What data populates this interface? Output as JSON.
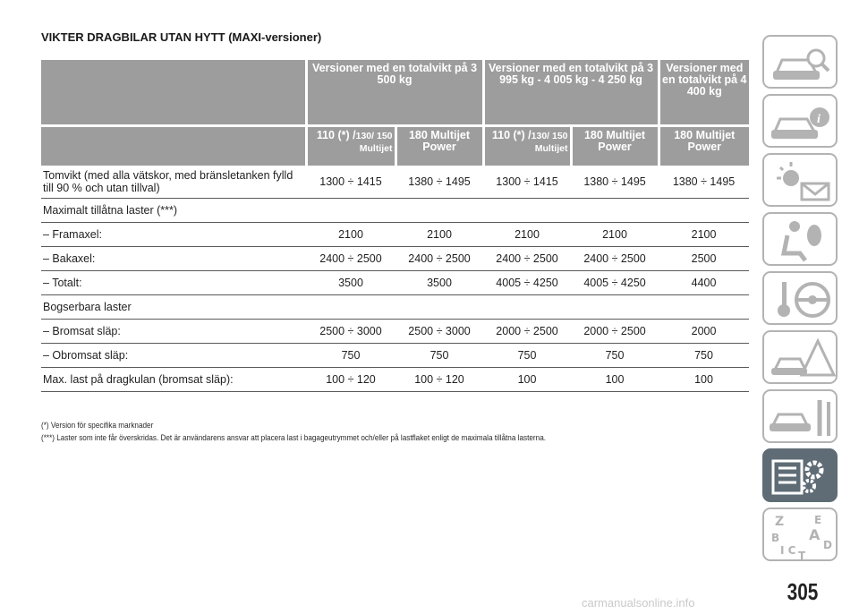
{
  "title": "VIKTER DRAGBILAR UTAN HYTT (MAXI-versioner)",
  "header": {
    "groups": [
      "Versioner med en totalvikt på 3 500 kg",
      "Versioner med en totalvikt på 3 995 kg - 4 005 kg - 4 250 kg",
      "Versioner med en totalvikt på 4 400 kg"
    ],
    "engines": [
      {
        "main": "110 (*) /",
        "small": "130/ 150 Multijet"
      },
      {
        "main": "180 Multijet Power",
        "small": ""
      },
      {
        "main": "110 (*) /",
        "small": "130/ 150 Multijet"
      },
      {
        "main": "180 Multijet Power",
        "small": ""
      },
      {
        "main": "180 Multijet Power",
        "small": ""
      }
    ]
  },
  "rows": [
    {
      "label": "Tomvikt (med alla vätskor, med bränsletanken fylld till 90 % och utan tillval)",
      "values": [
        "1300 ÷ 1415",
        "1380 ÷ 1495",
        "1300 ÷ 1415",
        "1380 ÷ 1495",
        "1380 ÷ 1495"
      ]
    },
    {
      "label": "Maximalt tillåtna laster (***)",
      "values": [
        "",
        "",
        "",
        "",
        ""
      ]
    },
    {
      "label": "– Framaxel:",
      "values": [
        "2100",
        "2100",
        "2100",
        "2100",
        "2100"
      ]
    },
    {
      "label": "– Bakaxel:",
      "values": [
        "2400 ÷ 2500",
        "2400 ÷ 2500",
        "2400 ÷ 2500",
        "2400 ÷ 2500",
        "2500"
      ]
    },
    {
      "label": "– Totalt:",
      "values": [
        "3500",
        "3500",
        "4005 ÷ 4250",
        "4005 ÷ 4250",
        "4400"
      ]
    },
    {
      "label": "Bogserbara laster",
      "values": [
        "",
        "",
        "",
        "",
        ""
      ]
    },
    {
      "label": "– Bromsat släp:",
      "values": [
        "2500 ÷ 3000",
        "2500 ÷ 3000",
        "2000 ÷ 2500",
        "2000 ÷ 2500",
        "2000"
      ]
    },
    {
      "label": "– Obromsat släp:",
      "values": [
        "750",
        "750",
        "750",
        "750",
        "750"
      ]
    },
    {
      "label": "Max. last på dragkulan (bromsat släp):",
      "values": [
        "100 ÷ 120",
        "100 ÷ 120",
        "100",
        "100",
        "100"
      ]
    }
  ],
  "footnotes": [
    "(*) Version för specifika marknader",
    "(***) Laster som inte får överskridas. Det är användarens ansvar att placera last i bagageutrymmet och/eller på lastflaket enligt de maximala tillåtna lasterna."
  ],
  "side_tabs": [
    {
      "icon": "car-search-icon"
    },
    {
      "icon": "car-info-icon"
    },
    {
      "icon": "warning-lights-icon"
    },
    {
      "icon": "airbag-seat-icon"
    },
    {
      "icon": "steering-key-icon"
    },
    {
      "icon": "car-warning-triangle-icon"
    },
    {
      "icon": "car-tools-icon"
    },
    {
      "icon": "technical-data-icon",
      "active": true
    },
    {
      "icon": "alphabetical-index-icon"
    }
  ],
  "page_number": "305",
  "watermark": "carmanualsonline.info",
  "colors": {
    "header_bg": "#9d9d9d",
    "active_tab": "#5f6c76"
  }
}
